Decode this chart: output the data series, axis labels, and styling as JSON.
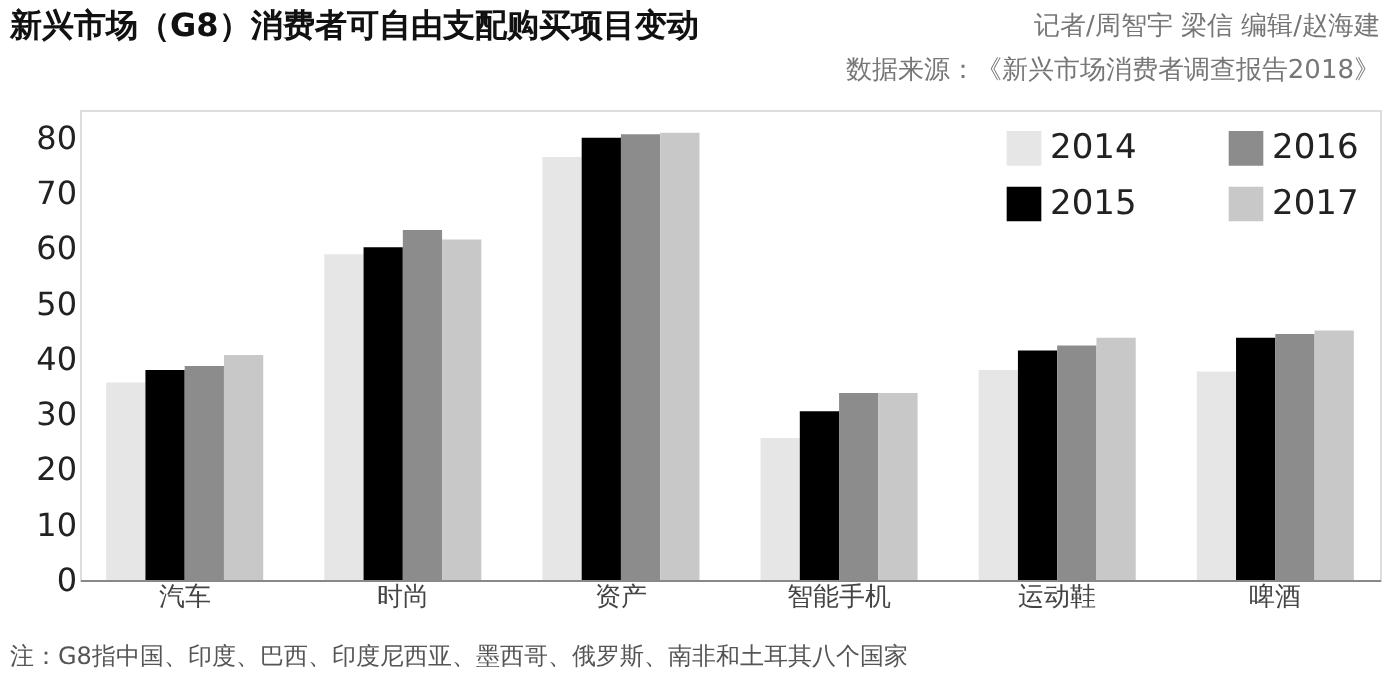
{
  "chart_data": {
    "type": "bar",
    "title": "新兴市场（G8）消费者可自由支配购买项目变动",
    "categories": [
      "汽车",
      "时尚",
      "资产",
      "智能手机",
      "运动鞋",
      "啤酒"
    ],
    "series": [
      {
        "name": "2014",
        "color": "#e6e6e6",
        "values": [
          35.7,
          58.9,
          76.5,
          25.7,
          38.0,
          37.7
        ]
      },
      {
        "name": "2015",
        "color": "#000000",
        "values": [
          38.0,
          60.2,
          80.0,
          30.5,
          41.5,
          43.8
        ]
      },
      {
        "name": "2016",
        "color": "#8c8c8c",
        "values": [
          38.7,
          63.3,
          80.6,
          33.8,
          42.4,
          44.5
        ]
      },
      {
        "name": "2017",
        "color": "#c8c8c8",
        "values": [
          40.7,
          61.6,
          80.9,
          33.8,
          43.8,
          45.1
        ]
      }
    ],
    "ylim": [
      0,
      85
    ],
    "yticks": [
      0,
      10,
      20,
      30,
      40,
      50,
      60,
      70,
      80
    ],
    "grid": false,
    "legend": "top right",
    "annotations": [
      "记者/周智宇 梁信 编辑/赵海建",
      "数据来源：《新兴市场消费者调查报告2018》",
      "注：G8指中国、印度、巴西、印度尼西亚、墨西哥、俄罗斯、南非和土耳其八个国家"
    ]
  }
}
